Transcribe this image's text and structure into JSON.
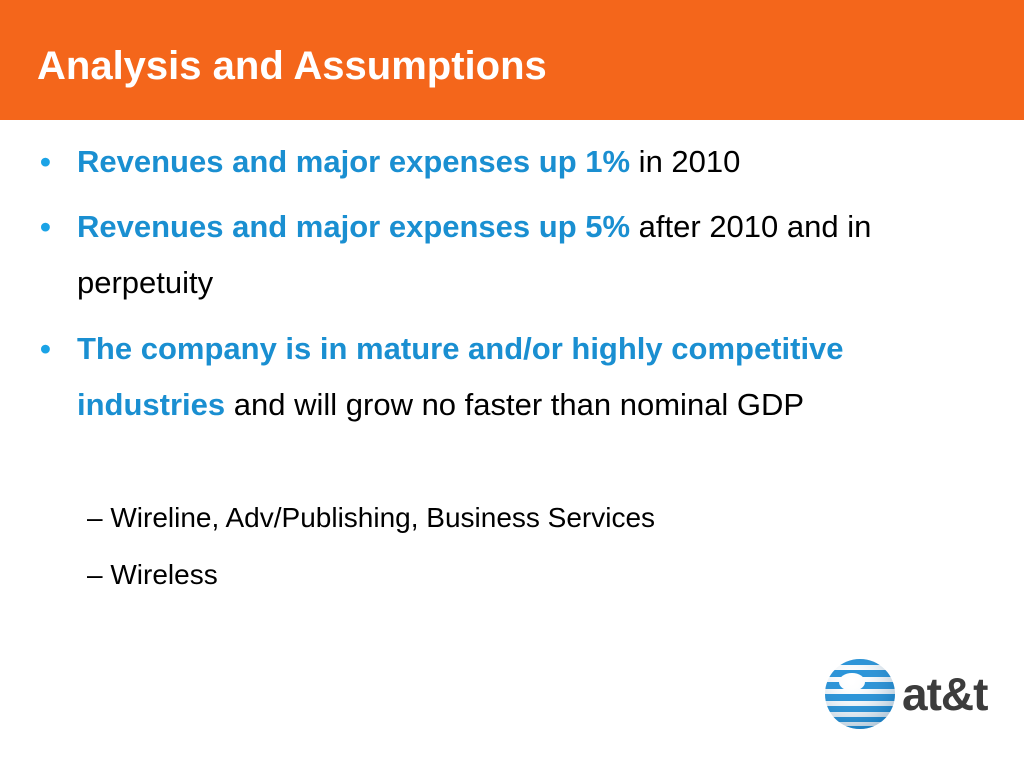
{
  "slide": {
    "title": "Analysis and Assumptions",
    "bullets": [
      {
        "highlight": "Revenues and major expenses up 1%",
        "rest": " in 2010"
      },
      {
        "highlight": "Revenues and major expenses up 5%",
        "rest": " after 2010 and in perpetuity"
      },
      {
        "highlight": "The company is in mature and/or highly competitive industries",
        "rest": " and will grow no faster than nominal GDP"
      }
    ],
    "subbullets": [
      "– Wireline, Adv/Publishing, Business Services",
      "– Wireless"
    ],
    "bullet_symbol": "•"
  },
  "logo": {
    "text": "at&t",
    "icon": "att-globe-icon"
  },
  "colors": {
    "title_bar": "#f4661b",
    "highlight": "#1a8fd1",
    "bullet": "#1ba3e6",
    "logo_globe": "#1d8fd8",
    "logo_text": "#3c3c3c"
  }
}
